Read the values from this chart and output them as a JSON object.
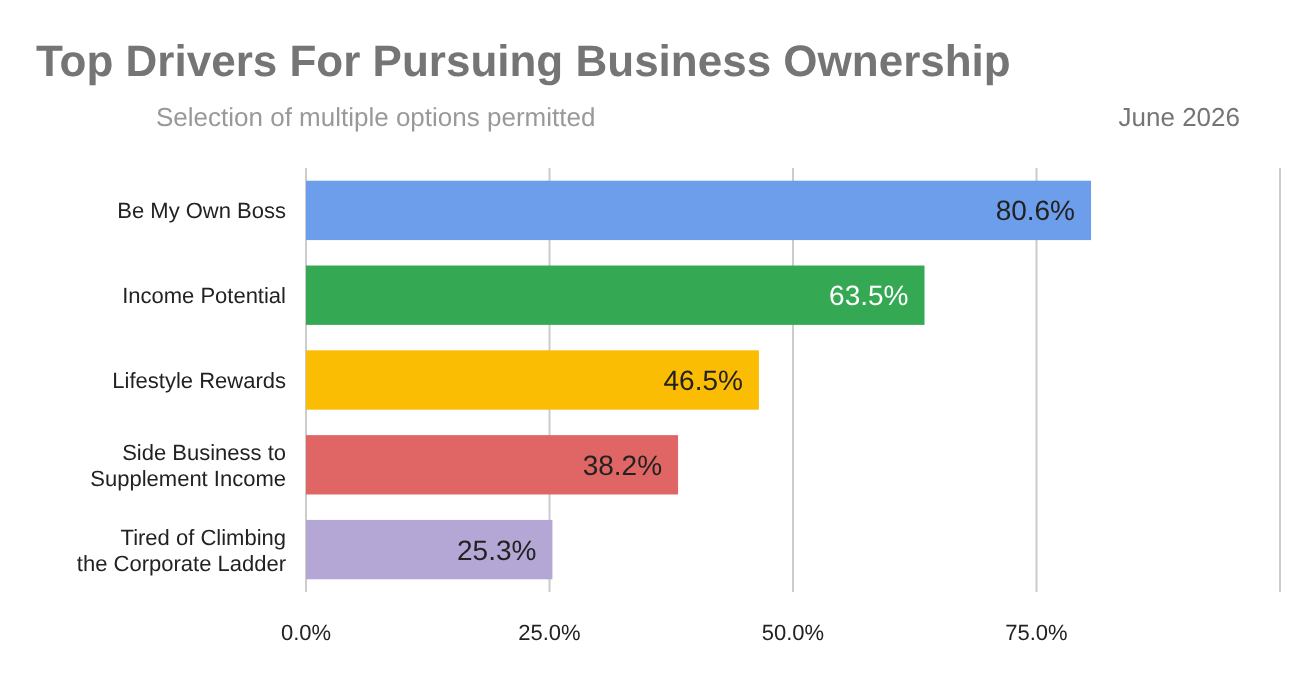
{
  "chart_data": {
    "type": "bar",
    "orientation": "horizontal",
    "title": "Top Drivers For Pursuing Business Ownership",
    "subtitle": "Selection of multiple options permitted",
    "annotations": [
      "June 2026"
    ],
    "categories": [
      "Be My Own Boss",
      "Income Potential",
      "Lifestyle Rewards",
      "Side Business to Supplement Income",
      "Tired of Climbing the Corporate Ladder"
    ],
    "values": [
      80.6,
      63.5,
      46.5,
      38.2,
      25.3
    ],
    "value_labels": [
      "80.6%",
      "63.5%",
      "46.5%",
      "38.2%",
      "25.3%"
    ],
    "colors": [
      "#6d9eeb",
      "#34a853",
      "#fbbc04",
      "#e06666",
      "#b4a7d6"
    ],
    "xlim": [
      0,
      100
    ],
    "xticks": [
      {
        "value": 0,
        "label": "0.0%"
      },
      {
        "value": 25,
        "label": "25.0%"
      },
      {
        "value": 50,
        "label": "50.0%"
      },
      {
        "value": 75,
        "label": "75.0%"
      },
      {
        "value": 100,
        "label": null
      }
    ],
    "grid": "x"
  }
}
